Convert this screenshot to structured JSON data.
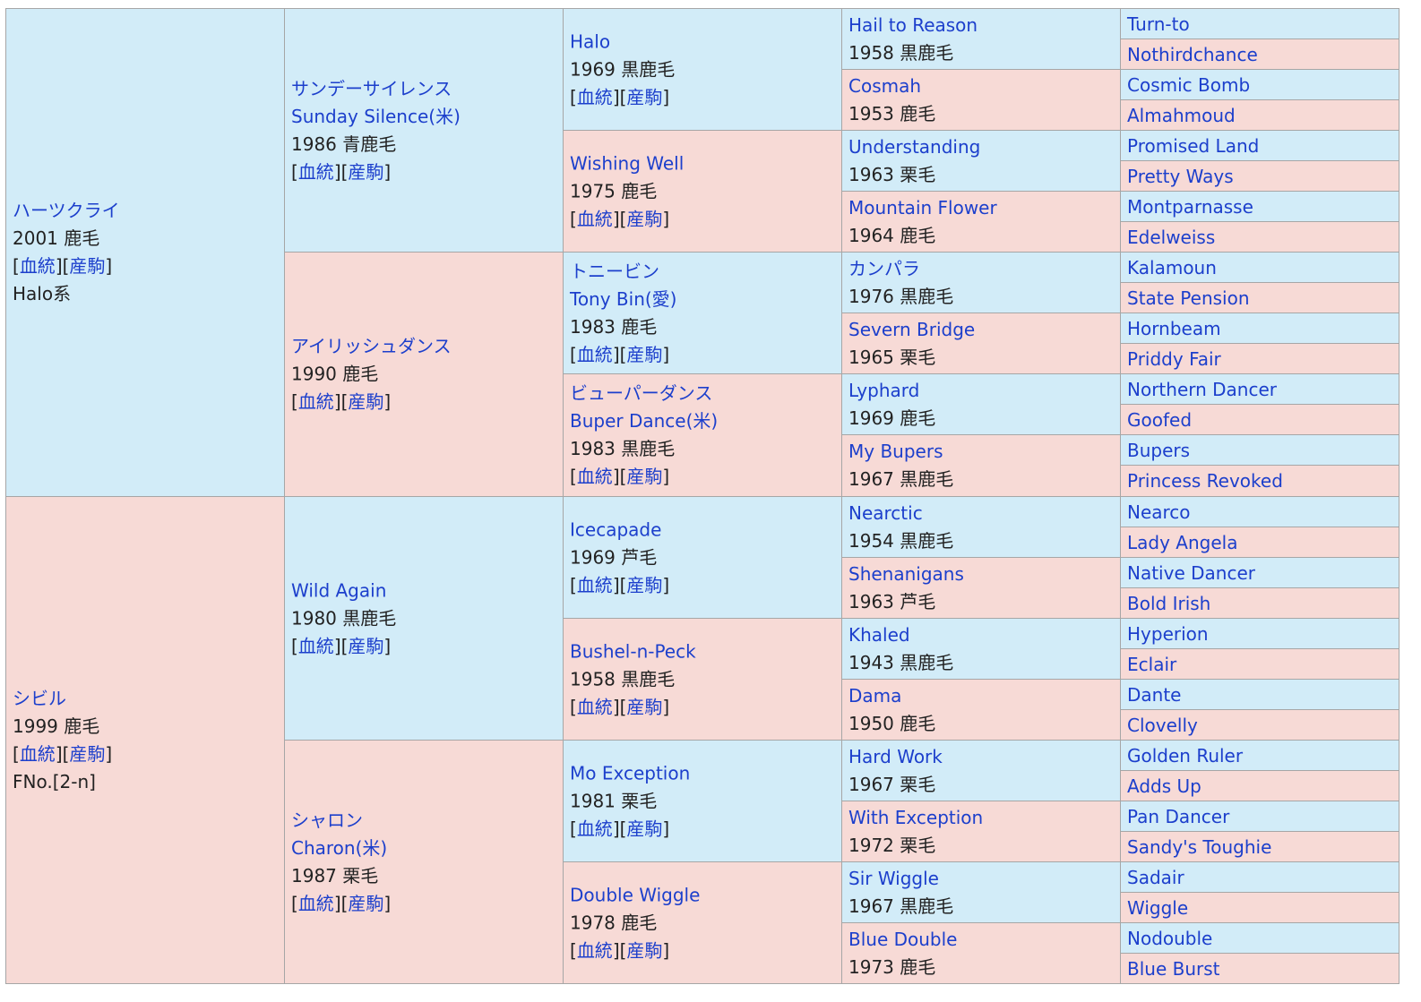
{
  "gen1": [
    {
      "name": "ハーツクライ",
      "year_color": "2001 鹿毛",
      "links": [
        "血統",
        "産駒"
      ],
      "extra": "Halo系"
    },
    {
      "name": "シビル",
      "year_color": "1999 鹿毛",
      "links": [
        "血統",
        "産駒"
      ],
      "extra": "FNo.[2-n]"
    }
  ],
  "gen2": [
    {
      "name": "サンデーサイレンス",
      "name2": "Sunday Silence(米)",
      "year_color": "1986 青鹿毛",
      "links": [
        "血統",
        "産駒"
      ]
    },
    {
      "name": "アイリッシュダンス",
      "year_color": "1990 鹿毛",
      "links": [
        "血統",
        "産駒"
      ]
    },
    {
      "name": "Wild Again",
      "year_color": "1980 黒鹿毛",
      "links": [
        "血統",
        "産駒"
      ]
    },
    {
      "name": "シャロン",
      "name2": "Charon(米)",
      "year_color": "1987 栗毛",
      "links": [
        "血統",
        "産駒"
      ]
    }
  ],
  "gen3": [
    {
      "name": "Halo",
      "year_color": "1969 黒鹿毛",
      "links": [
        "血統",
        "産駒"
      ]
    },
    {
      "name": "Wishing Well",
      "year_color": "1975 鹿毛",
      "links": [
        "血統",
        "産駒"
      ]
    },
    {
      "name": "トニービン",
      "name2": "Tony Bin(愛)",
      "year_color": "1983 鹿毛",
      "links": [
        "血統",
        "産駒"
      ]
    },
    {
      "name": "ビューパーダンス",
      "name2": "Buper Dance(米)",
      "year_color": "1983 黒鹿毛",
      "links": [
        "血統",
        "産駒"
      ]
    },
    {
      "name": "Icecapade",
      "year_color": "1969 芦毛",
      "links": [
        "血統",
        "産駒"
      ]
    },
    {
      "name": "Bushel-n-Peck",
      "year_color": "1958 黒鹿毛",
      "links": [
        "血統",
        "産駒"
      ]
    },
    {
      "name": "Mo Exception",
      "year_color": "1981 栗毛",
      "links": [
        "血統",
        "産駒"
      ]
    },
    {
      "name": "Double Wiggle",
      "year_color": "1978 鹿毛",
      "links": [
        "血統",
        "産駒"
      ]
    }
  ],
  "gen4": [
    {
      "name": "Hail to Reason",
      "year_color": "1958 黒鹿毛"
    },
    {
      "name": "Cosmah",
      "year_color": "1953 鹿毛"
    },
    {
      "name": "Understanding",
      "year_color": "1963 栗毛"
    },
    {
      "name": "Mountain Flower",
      "year_color": "1964 鹿毛"
    },
    {
      "name": "カンパラ",
      "year_color": "1976 黒鹿毛"
    },
    {
      "name": "Severn Bridge",
      "year_color": "1965 栗毛"
    },
    {
      "name": "Lyphard",
      "year_color": "1969 鹿毛"
    },
    {
      "name": "My Bupers",
      "year_color": "1967 黒鹿毛"
    },
    {
      "name": "Nearctic",
      "year_color": "1954 黒鹿毛"
    },
    {
      "name": "Shenanigans",
      "year_color": "1963 芦毛"
    },
    {
      "name": "Khaled",
      "year_color": "1943 黒鹿毛"
    },
    {
      "name": "Dama",
      "year_color": "1950 鹿毛"
    },
    {
      "name": "Hard Work",
      "year_color": "1967 栗毛"
    },
    {
      "name": "With Exception",
      "year_color": "1972 栗毛"
    },
    {
      "name": "Sir Wiggle",
      "year_color": "1967 黒鹿毛"
    },
    {
      "name": "Blue Double",
      "year_color": "1973 鹿毛"
    }
  ],
  "gen5": [
    "Turn-to",
    "Nothirdchance",
    "Cosmic Bomb",
    "Almahmoud",
    "Promised Land",
    "Pretty Ways",
    "Montparnasse",
    "Edelweiss",
    "Kalamoun",
    "State Pension",
    "Hornbeam",
    "Priddy Fair",
    "Northern Dancer",
    "Goofed",
    "Bupers",
    "Princess Revoked",
    "Nearco",
    "Lady Angela",
    "Native Dancer",
    "Bold Irish",
    "Hyperion",
    "Eclair",
    "Dante",
    "Clovelly",
    "Golden Ruler",
    "Adds Up",
    "Pan Dancer",
    "Sandy's Toughie",
    "Sadair",
    "Wiggle",
    "Nodouble",
    "Blue Burst"
  ],
  "colors": {
    "male": "#d2ecf8",
    "female": "#f7dad6",
    "link": "#1c3fcc",
    "border": "#a6a6a6"
  }
}
